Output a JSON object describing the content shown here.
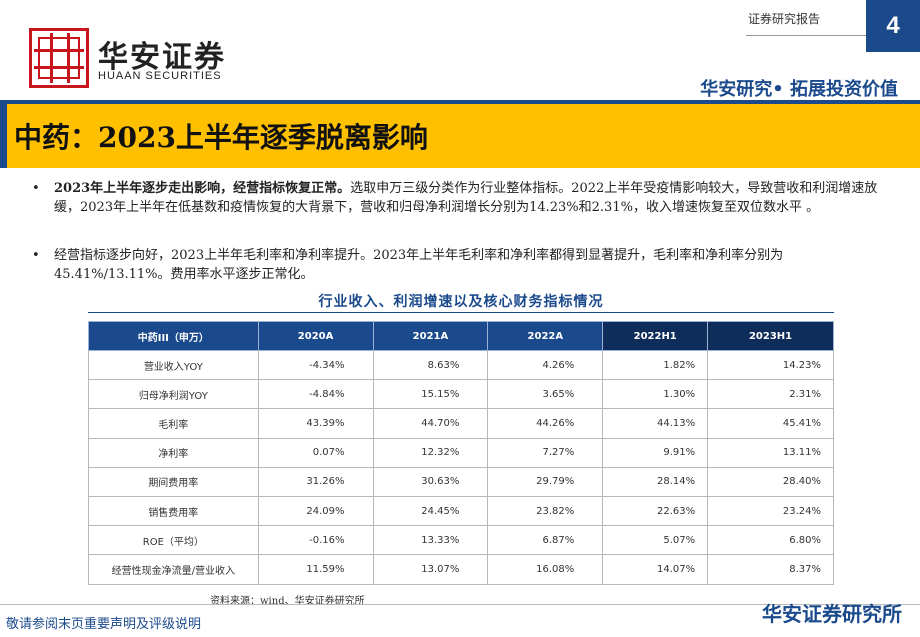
{
  "header": {
    "logo_name": "华安证券",
    "logo_en": "HUAAN SECURITIES",
    "report_type": "证券研究报告",
    "page_number": "4",
    "slogan": "华安研究• 拓展投资价值",
    "colors": {
      "primary": "#1b4a8c",
      "title_bar": "#ffc000",
      "logo_red": "#c8161d"
    }
  },
  "title": "中药：2023上半年逐季脱离影响",
  "bullets": [
    {
      "lead": "2023年上半年逐步走出影响，经营指标恢复正常。",
      "text": "选取申万三级分类作为行业整体指标。2022上半年受疫情影响较大，导致营收和利润增速放缓，2023年上半年在低基数和疫情恢复的大背景下，营收和归母净利润增长分别为14.23%和2.31%，收入增速恢复至双位数水平 。"
    },
    {
      "lead": "",
      "text": "经营指标逐步向好，2023上半年毛利率和净利率提升。2023年上半年毛利率和净利率都得到显著提升，毛利率和净利率分别为45.41%/13.11%。费用率水平逐步正常化。"
    }
  ],
  "table": {
    "caption": "行业收入、利润增速以及核心财务指标情况",
    "headers": [
      "中药III（申万）",
      "2020A",
      "2021A",
      "2022A",
      "2022H1",
      "2023H1"
    ],
    "rows": [
      [
        "营业收入YOY",
        "-4.34%",
        "8.63%",
        "4.26%",
        "1.82%",
        "14.23%"
      ],
      [
        "归母净利润YOY",
        "-4.84%",
        "15.15%",
        "3.65%",
        "1.30%",
        "2.31%"
      ],
      [
        "毛利率",
        "43.39%",
        "44.70%",
        "44.26%",
        "44.13%",
        "45.41%"
      ],
      [
        "净利率",
        "0.07%",
        "12.32%",
        "7.27%",
        "9.91%",
        "13.11%"
      ],
      [
        "期间费用率",
        "31.26%",
        "30.63%",
        "29.79%",
        "28.14%",
        "28.40%"
      ],
      [
        "销售费用率",
        "24.09%",
        "24.45%",
        "23.82%",
        "22.63%",
        "23.24%"
      ],
      [
        "ROE（平均）",
        "-0.16%",
        "13.33%",
        "6.87%",
        "5.07%",
        "6.80%"
      ],
      [
        "经营性现金净流量/营业收入",
        "11.59%",
        "13.07%",
        "16.08%",
        "14.07%",
        "8.37%"
      ]
    ],
    "source": "资料来源：wind、华安证券研究所"
  },
  "footer": {
    "disclaimer": "敬请参阅末页重要声明及评级说明",
    "brand": "华安证券研究所"
  }
}
